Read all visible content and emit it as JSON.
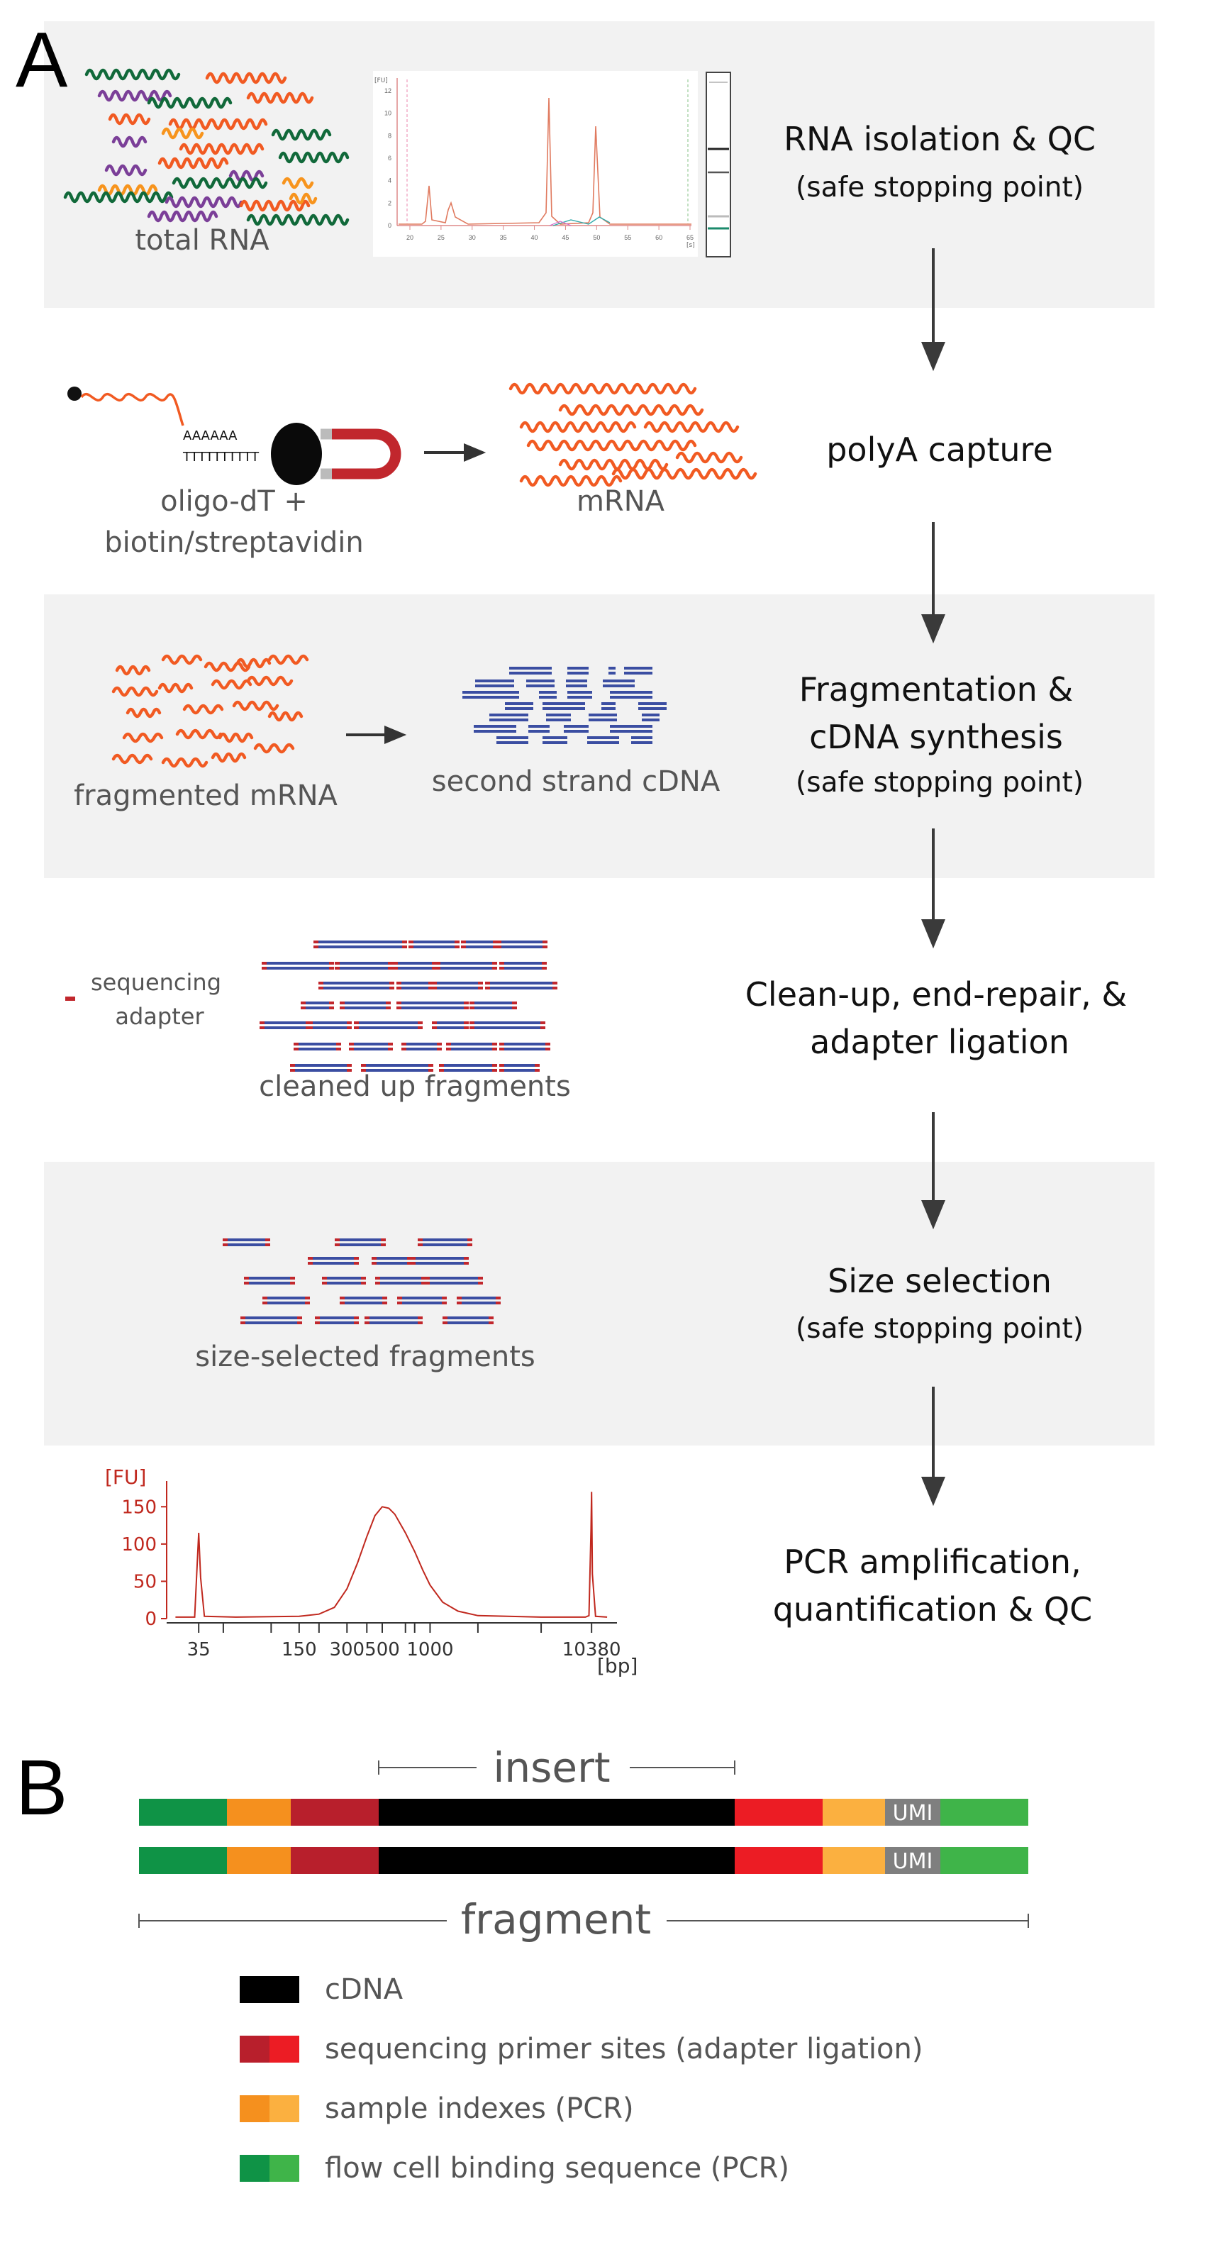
{
  "panel_a": {
    "letter": "A",
    "steps": [
      {
        "title": "RNA isolation & QC",
        "note": "(safe stopping point)"
      },
      {
        "title": "polyA capture",
        "note": ""
      },
      {
        "title_line1": "Fragmentation &",
        "title_line2": "cDNA synthesis",
        "note": "(safe stopping point)"
      },
      {
        "title_line1": "Clean-up, end-repair, &",
        "title_line2": "adapter ligation"
      },
      {
        "title": "Size selection",
        "note": "(safe stopping point)"
      },
      {
        "title_line1": "PCR amplification,",
        "title_line2": "quantification & QC"
      }
    ],
    "labels": {
      "total_rna": "total RNA",
      "polya_seq": "AAAAAA",
      "oligo_dt_seq": "TTTTTTTTTT",
      "oligo_line1": "oligo-dT +",
      "oligo_line2": "biotin/streptavidin",
      "mrna": "mRNA",
      "fragmented_mrna": "fragmented mRNA",
      "second_strand": "second strand cDNA",
      "adapter_line1": "sequencing",
      "adapter_line2": "adapter",
      "cleaned_up": "cleaned up fragments",
      "size_selected": "size-selected fragments"
    },
    "bioanalyzer_trace": {
      "x_ticks": [
        "20",
        "25",
        "30",
        "35",
        "40",
        "45",
        "50",
        "55",
        "60",
        "65"
      ],
      "x_unit": "[s]",
      "y_unit": "[FU]",
      "y_ticks": [
        "0",
        "2",
        "4",
        "6",
        "8",
        "10",
        "12"
      ]
    }
  },
  "chart_data": {
    "type": "line",
    "title": "",
    "xlabel": "[bp]",
    "ylabel": "[FU]",
    "x_scale": "log",
    "x_tick_labels": [
      "35",
      "150",
      "300",
      "500",
      "1000",
      "10380"
    ],
    "y_ticks": [
      0,
      50,
      100,
      150
    ],
    "ylim": [
      0,
      175
    ],
    "series": [
      {
        "x": [
          25,
          33,
          34,
          35,
          36,
          38,
          60,
          150,
          200,
          250,
          300,
          350,
          400,
          450,
          500,
          550,
          600,
          700,
          800,
          900,
          1000,
          1200,
          1500,
          2000,
          5000,
          9500,
          10000,
          10300,
          10380,
          10500,
          11000,
          13000
        ],
        "y": [
          2,
          2,
          60,
          115,
          55,
          3,
          2,
          3,
          6,
          15,
          40,
          75,
          110,
          138,
          150,
          148,
          140,
          115,
          90,
          65,
          45,
          22,
          10,
          4,
          2,
          2,
          4,
          120,
          170,
          60,
          3,
          2
        ]
      }
    ],
    "grid": false,
    "color": "#c0281e"
  },
  "panel_b": {
    "letter": "B",
    "insert_label": "insert",
    "fragment_label": "fragment",
    "umi_label": "UMI",
    "legend": [
      {
        "label": "cDNA",
        "colors": [
          "#000000",
          "#000000"
        ]
      },
      {
        "label": "sequencing primer sites (adapter ligation)",
        "colors": [
          "#b81f2c",
          "#ec1c24"
        ]
      },
      {
        "label": "sample indexes (PCR)",
        "colors": [
          "#f5901e",
          "#fbb040"
        ]
      },
      {
        "label": "flow cell binding sequence (PCR)",
        "colors": [
          "#0f9346",
          "#3fb449"
        ]
      }
    ]
  },
  "colors": {
    "panel_bg": "#f2f2f2",
    "arrow": "#3a3a3a",
    "label_text": "#555555",
    "step_text": "#111111",
    "mrna": "#f15a22",
    "cdna_blue": "#3b4ea2",
    "adapter_red": "#c1272d",
    "umi_grey": "#7f7f7f"
  }
}
